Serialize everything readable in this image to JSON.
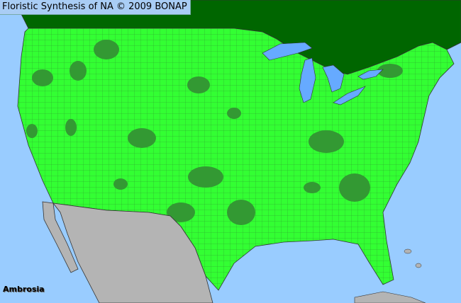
{
  "header": {
    "title": "Floristic Synthesis of NA © 2009 BONAP"
  },
  "map": {
    "taxon": "Ambrosia",
    "colors": {
      "ocean": "#99ccff",
      "canada": "#006600",
      "present": "#33ff33",
      "present_county_darker": "#339933",
      "mexico": "#b4b4b4",
      "borders": "#333333"
    }
  }
}
